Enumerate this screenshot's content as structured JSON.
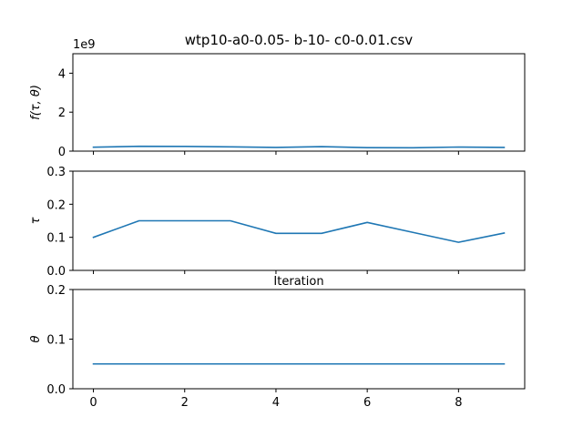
{
  "title": "wtp10-a0-0.05- b-10- c0-0.01.csv",
  "colors": {
    "series": "#1f77b4"
  },
  "chart_data": [
    {
      "type": "line",
      "ylabel": "f(τ, θ)",
      "offset_label": "1e9",
      "ylim": [
        0,
        5
      ],
      "yticks": [
        0,
        2,
        4
      ],
      "xlim": [
        -0.45,
        9.45
      ],
      "xticks": [
        0,
        2,
        4,
        6,
        8
      ],
      "show_xtick_labels": false,
      "x": [
        0,
        1,
        2,
        3,
        4,
        5,
        6,
        7,
        8,
        9
      ],
      "values": [
        0.2,
        0.25,
        0.24,
        0.22,
        0.19,
        0.23,
        0.18,
        0.17,
        0.21,
        0.19
      ]
    },
    {
      "type": "line",
      "ylabel": "τ",
      "ylim": [
        0,
        0.3
      ],
      "yticks": [
        "0.0",
        "0.1",
        "0.2",
        "0.3"
      ],
      "xlim": [
        -0.45,
        9.45
      ],
      "xticks": [
        0,
        2,
        4,
        6,
        8
      ],
      "show_xtick_labels": false,
      "x": [
        0,
        1,
        2,
        3,
        4,
        5,
        6,
        7,
        8,
        9
      ],
      "values": [
        0.1,
        0.15,
        0.15,
        0.15,
        0.112,
        0.112,
        0.145,
        0.115,
        0.085,
        0.113
      ]
    },
    {
      "type": "line",
      "title": "Iteration",
      "ylabel": "θ",
      "ylim": [
        0,
        0.2
      ],
      "yticks": [
        "0.0",
        "0.1",
        "0.2"
      ],
      "xlim": [
        -0.45,
        9.45
      ],
      "xticks": [
        0,
        2,
        4,
        6,
        8
      ],
      "show_xtick_labels": true,
      "x": [
        0,
        1,
        2,
        3,
        4,
        5,
        6,
        7,
        8,
        9
      ],
      "values": [
        0.05,
        0.05,
        0.05,
        0.05,
        0.05,
        0.05,
        0.05,
        0.05,
        0.05,
        0.05
      ]
    }
  ]
}
